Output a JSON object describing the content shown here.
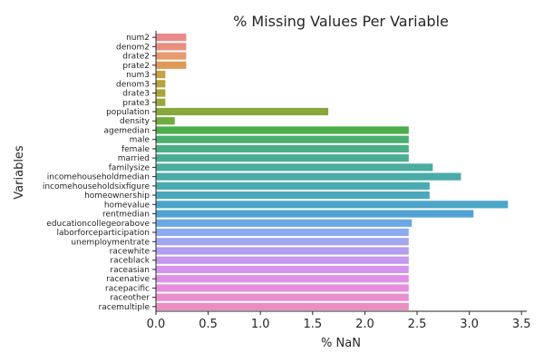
{
  "chart_data": {
    "type": "bar",
    "orientation": "horizontal",
    "title": "% Missing Values Per Variable",
    "xlabel": "% NaN",
    "ylabel": "Variables",
    "xlim": [
      0,
      3.55
    ],
    "xticks": [
      "0.0",
      "0.5",
      "1.0",
      "1.5",
      "2.0",
      "2.5",
      "3.0",
      "3.5"
    ],
    "grid": false,
    "legend": "none",
    "categories": [
      "num2",
      "denom2",
      "drate2",
      "prate2",
      "num3",
      "denom3",
      "drate3",
      "prate3",
      "population",
      "density",
      "agemedian",
      "male",
      "female",
      "married",
      "familysize",
      "incomehouseholdmedian",
      "incomehouseholdsixfigure",
      "homeownership",
      "homevalue",
      "rentmedian",
      "educationcollegeorabove",
      "laborforceparticipation",
      "unemploymentrate",
      "racewhite",
      "raceblack",
      "raceasian",
      "racenative",
      "racepacific",
      "raceother",
      "racemultiple"
    ],
    "values": [
      0.29,
      0.29,
      0.29,
      0.29,
      0.09,
      0.09,
      0.09,
      0.09,
      1.65,
      0.18,
      2.42,
      2.42,
      2.42,
      2.42,
      2.65,
      2.92,
      2.62,
      2.62,
      3.37,
      3.04,
      2.45,
      2.42,
      2.42,
      2.42,
      2.42,
      2.42,
      2.42,
      2.42,
      2.42,
      2.42
    ],
    "colors": [
      "#e98a8a",
      "#e98f80",
      "#e79a70",
      "#df9a58",
      "#c9a03d",
      "#baa23b",
      "#a8a43b",
      "#9aa73c",
      "#88a83d",
      "#6fab3e",
      "#4cae4a",
      "#4baf6f",
      "#4aaf85",
      "#4aae93",
      "#4aad9f",
      "#4aaba8",
      "#4aaab1",
      "#4aa8bc",
      "#4ba5c8",
      "#50a3d2",
      "#6aa8e3",
      "#8ea9ec",
      "#a3a6ef",
      "#b39eef",
      "#c499ee",
      "#d396ec",
      "#df91e7",
      "#e58fdd",
      "#e88fcf",
      "#e98fbf"
    ]
  }
}
